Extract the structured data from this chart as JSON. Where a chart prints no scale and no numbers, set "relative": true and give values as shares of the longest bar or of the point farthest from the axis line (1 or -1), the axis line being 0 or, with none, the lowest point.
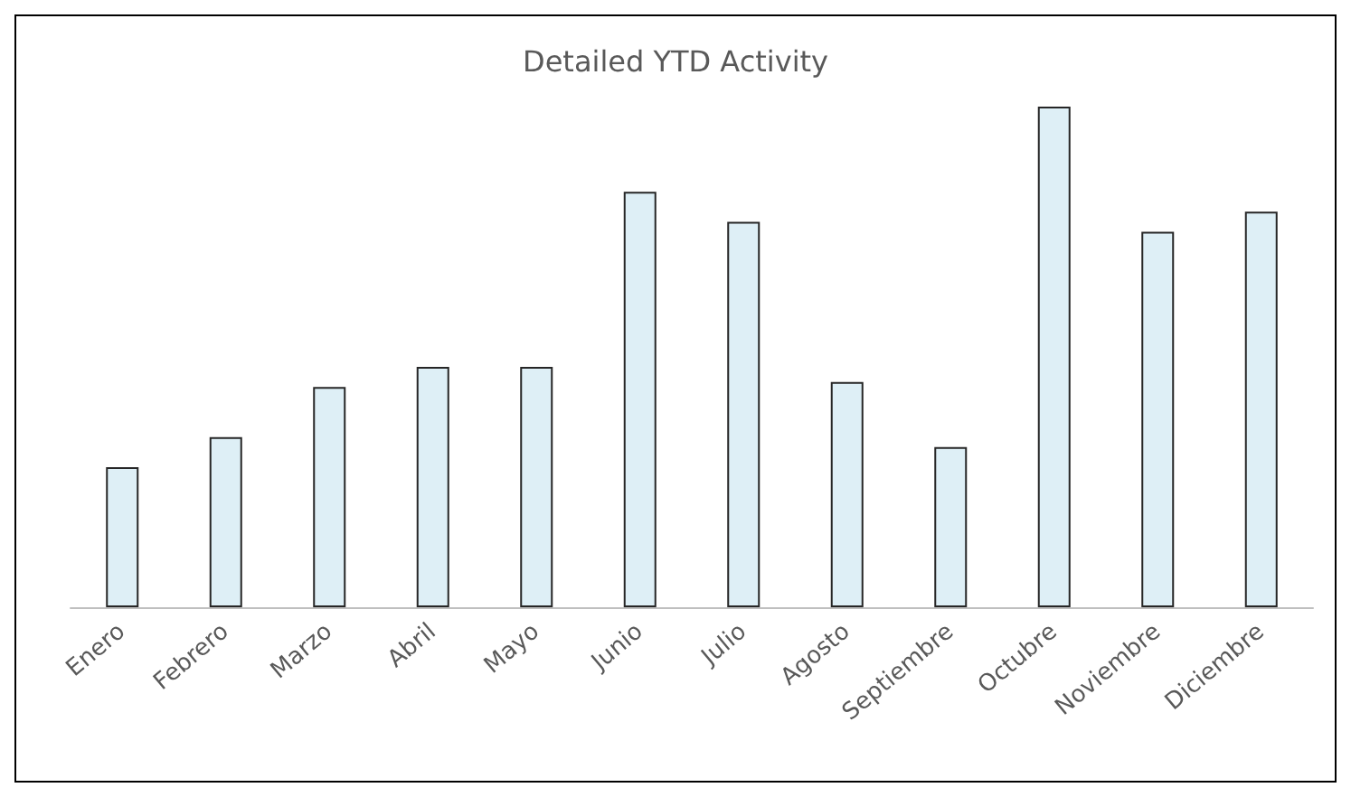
{
  "chart_data": {
    "type": "bar",
    "title": "Detailed YTD Activity",
    "relative": true,
    "categories": [
      "Enero",
      "Febrero",
      "Marzo",
      "Abril",
      "Mayo",
      "Junio",
      "Julio",
      "Agosto",
      "Septiembre",
      "Octubre",
      "Noviembre",
      "Diciembre"
    ],
    "values": [
      0.28,
      0.34,
      0.44,
      0.48,
      0.48,
      0.83,
      0.77,
      0.45,
      0.32,
      1,
      0.75,
      0.79
    ],
    "color": "#deeff6",
    "grid": false
  }
}
